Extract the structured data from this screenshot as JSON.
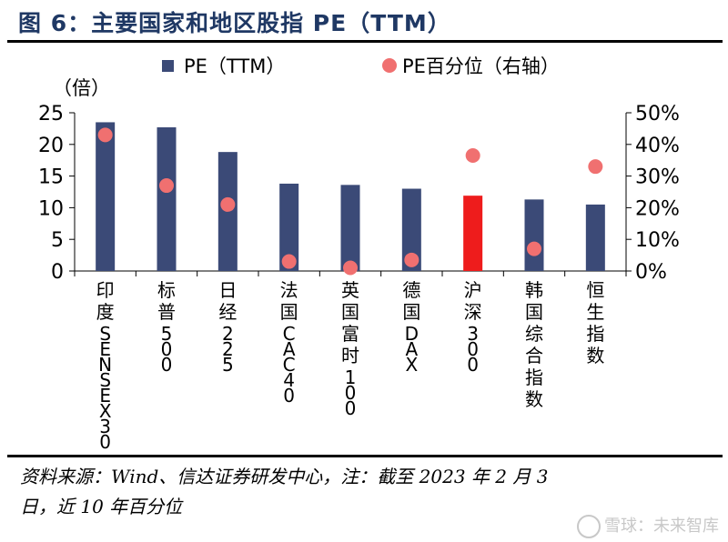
{
  "figure": {
    "title": "图 6：主要国家和地区股指 PE（TTM）",
    "source_line1": "资料来源：Wind、信达证券研发中心，注：截至 2023 年 2 月 3",
    "source_line2": "日，近 10 年百分位",
    "watermark": "雪球：未来智库"
  },
  "colors": {
    "bar": "#3b4a77",
    "bar_highlight": "#ee1c1c",
    "dot": "#f07070",
    "title": "#1f3864"
  },
  "chart_data": {
    "type": "bar",
    "categories": [
      "印度SENSEX30",
      "标普500",
      "日经225",
      "法国CAC40",
      "英国富时100",
      "德国DAX",
      "沪深300",
      "韩国综合指数",
      "恒生指数"
    ],
    "series": [
      {
        "name": "PE（TTM）",
        "type": "bar",
        "axis": "left",
        "values": [
          23.5,
          22.7,
          18.8,
          13.8,
          13.6,
          13.0,
          11.9,
          11.3,
          10.5
        ],
        "highlight_index": 6
      },
      {
        "name": "PE百分位（右轴）",
        "type": "scatter",
        "axis": "right",
        "values": [
          0.43,
          0.27,
          0.21,
          0.03,
          0.01,
          0.035,
          0.365,
          0.07,
          0.33
        ]
      }
    ],
    "ylabel": "（倍）",
    "ylim": [
      0,
      25
    ],
    "yticks": [
      "0",
      "5",
      "10",
      "15",
      "20",
      "25"
    ],
    "y2lim": [
      0,
      0.5
    ],
    "y2ticks": [
      "0%",
      "10%",
      "20%",
      "30%",
      "40%",
      "50%"
    ],
    "legend_position": "top-center",
    "grid": false
  }
}
